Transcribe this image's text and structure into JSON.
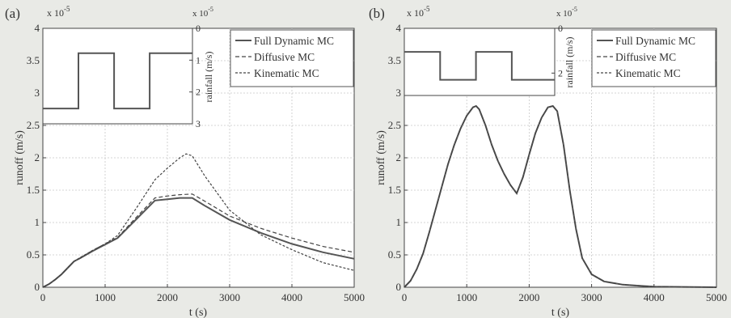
{
  "chart_data": [
    {
      "panel_label": "(a)",
      "type": "line",
      "xlabel": "t (s)",
      "ylabel": "runoff (m/s)",
      "y_exponent": "x 10",
      "y_exponent_power": "-5",
      "xlim": [
        0,
        5000
      ],
      "ylim": [
        0,
        4
      ],
      "xticks": [
        "0",
        "1000",
        "2000",
        "3000",
        "4000",
        "5000"
      ],
      "yticks": [
        "0",
        "0.5",
        "1",
        "1.5",
        "2",
        "2.5",
        "3",
        "3.5",
        "4"
      ],
      "grid": true,
      "legend_position": "top-right",
      "series": [
        {
          "name": "Full Dynamic  MC",
          "style": "solid",
          "x": [
            0,
            100,
            200,
            300,
            400,
            500,
            600,
            800,
            1000,
            1200,
            1500,
            1800,
            2000,
            2200,
            2400,
            2600,
            3000,
            3500,
            4000,
            4500,
            5000
          ],
          "y": [
            0,
            0.05,
            0.12,
            0.2,
            0.3,
            0.4,
            0.45,
            0.56,
            0.66,
            0.76,
            1.05,
            1.34,
            1.36,
            1.38,
            1.38,
            1.26,
            1.04,
            0.84,
            0.67,
            0.54,
            0.44
          ]
        },
        {
          "name": "Diffusive MC",
          "style": "dash",
          "x": [
            0,
            100,
            200,
            300,
            400,
            500,
            600,
            800,
            1000,
            1200,
            1500,
            1800,
            2000,
            2200,
            2400,
            2600,
            3000,
            3500,
            4000,
            4500,
            5000
          ],
          "y": [
            0,
            0.05,
            0.12,
            0.2,
            0.3,
            0.4,
            0.45,
            0.57,
            0.67,
            0.77,
            1.08,
            1.38,
            1.41,
            1.43,
            1.44,
            1.33,
            1.1,
            0.91,
            0.76,
            0.63,
            0.54
          ]
        },
        {
          "name": "Kinematic MC",
          "style": "shortdash",
          "x": [
            0,
            100,
            200,
            300,
            400,
            500,
            600,
            800,
            1000,
            1200,
            1500,
            1800,
            2000,
            2200,
            2300,
            2400,
            2600,
            3000,
            3500,
            4000,
            4500,
            5000
          ],
          "y": [
            0,
            0.05,
            0.12,
            0.2,
            0.3,
            0.4,
            0.46,
            0.57,
            0.67,
            0.8,
            1.22,
            1.66,
            1.84,
            2.0,
            2.06,
            2.03,
            1.72,
            1.19,
            0.81,
            0.58,
            0.38,
            0.26
          ]
        }
      ],
      "inset": {
        "ylabel": "rainfall (m/s)",
        "y_exponent": "x 10",
        "y_exponent_power": "-5",
        "ylim": [
          3,
          0
        ],
        "yticks": [
          "0",
          "1",
          "2",
          "3"
        ],
        "steps": [
          {
            "x0": 0,
            "x1": 600,
            "y": 2.52
          },
          {
            "x0": 600,
            "x1": 1200,
            "y": 0.78
          },
          {
            "x0": 1200,
            "x1": 1800,
            "y": 2.52
          },
          {
            "x0": 1800,
            "x1": 2520,
            "y": 0.78
          }
        ]
      }
    },
    {
      "panel_label": "(b)",
      "type": "line",
      "xlabel": "t (s)",
      "ylabel": "runoff (m/s)",
      "y_exponent": "x 10",
      "y_exponent_power": "-5",
      "xlim": [
        0,
        5000
      ],
      "ylim": [
        0,
        4
      ],
      "xticks": [
        "0",
        "1000",
        "2000",
        "3000",
        "4000",
        "5000"
      ],
      "yticks": [
        "0",
        "0.5",
        "1",
        "1.5",
        "2",
        "2.5",
        "3",
        "3.5",
        "4"
      ],
      "grid": true,
      "legend_position": "top-right",
      "series": [
        {
          "name": "Full Dynamic  MC",
          "style": "solid",
          "x": [
            0,
            100,
            200,
            300,
            400,
            500,
            600,
            700,
            800,
            900,
            1000,
            1100,
            1150,
            1200,
            1300,
            1400,
            1500,
            1600,
            1700,
            1800,
            1900,
            2000,
            2100,
            2200,
            2300,
            2380,
            2450,
            2550,
            2650,
            2750,
            2850,
            3000,
            3200,
            3500,
            3800,
            4000,
            4500,
            5000
          ],
          "y": [
            0,
            0.1,
            0.28,
            0.52,
            0.85,
            1.2,
            1.55,
            1.9,
            2.2,
            2.45,
            2.65,
            2.78,
            2.8,
            2.75,
            2.5,
            2.2,
            1.95,
            1.75,
            1.58,
            1.45,
            1.7,
            2.05,
            2.38,
            2.62,
            2.78,
            2.8,
            2.72,
            2.2,
            1.5,
            0.9,
            0.45,
            0.2,
            0.09,
            0.04,
            0.02,
            0.01,
            0.005,
            0
          ]
        },
        {
          "name": "Diffusive MC",
          "style": "dash",
          "x": [
            0,
            100,
            200,
            300,
            400,
            500,
            600,
            700,
            800,
            900,
            1000,
            1100,
            1150,
            1200,
            1300,
            1400,
            1500,
            1600,
            1700,
            1800,
            1900,
            2000,
            2100,
            2200,
            2300,
            2380,
            2450,
            2550,
            2650,
            2750,
            2850,
            3000,
            3200,
            3500,
            3800,
            4000,
            4500,
            5000
          ],
          "y": [
            0,
            0.1,
            0.28,
            0.52,
            0.85,
            1.2,
            1.55,
            1.9,
            2.2,
            2.45,
            2.65,
            2.78,
            2.8,
            2.75,
            2.5,
            2.2,
            1.95,
            1.75,
            1.58,
            1.45,
            1.7,
            2.05,
            2.38,
            2.62,
            2.78,
            2.8,
            2.72,
            2.2,
            1.5,
            0.9,
            0.45,
            0.2,
            0.09,
            0.04,
            0.02,
            0.01,
            0.005,
            0
          ]
        },
        {
          "name": "Kinematic MC",
          "style": "shortdash",
          "x": [
            0,
            100,
            200,
            300,
            400,
            500,
            600,
            700,
            800,
            900,
            1000,
            1100,
            1150,
            1200,
            1300,
            1400,
            1500,
            1600,
            1700,
            1800,
            1900,
            2000,
            2100,
            2200,
            2300,
            2380,
            2450,
            2550,
            2650,
            2750,
            2850,
            3000,
            3200,
            3500,
            3800,
            4000,
            4500,
            5000
          ],
          "y": [
            0,
            0.1,
            0.28,
            0.52,
            0.85,
            1.2,
            1.55,
            1.9,
            2.2,
            2.45,
            2.65,
            2.78,
            2.8,
            2.75,
            2.5,
            2.2,
            1.95,
            1.75,
            1.58,
            1.45,
            1.7,
            2.05,
            2.38,
            2.62,
            2.78,
            2.8,
            2.72,
            2.2,
            1.5,
            0.9,
            0.45,
            0.2,
            0.09,
            0.04,
            0.02,
            0.01,
            0.005,
            0
          ]
        }
      ],
      "inset": {
        "ylabel": "rainfall (m/s)",
        "y_exponent": "x 10",
        "y_exponent_power": "-5",
        "ylim": [
          3,
          0
        ],
        "yticks": [
          "0",
          "2"
        ],
        "steps": [
          {
            "x0": 0,
            "x1": 600,
            "y": 1.05
          },
          {
            "x0": 600,
            "x1": 1200,
            "y": 2.3
          },
          {
            "x0": 1200,
            "x1": 1800,
            "y": 1.05
          },
          {
            "x0": 1800,
            "x1": 2520,
            "y": 2.3
          }
        ]
      }
    }
  ]
}
